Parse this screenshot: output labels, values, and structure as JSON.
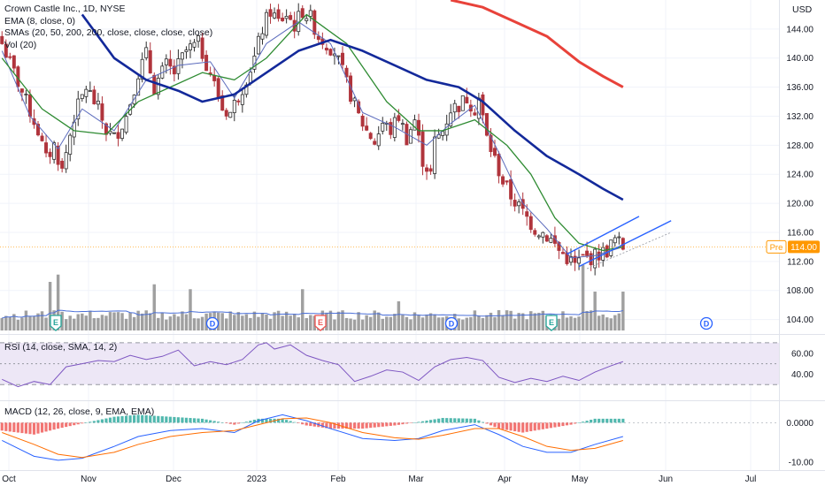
{
  "header": {
    "symbol_line": "Crown Castle Inc., 1D, NYSE",
    "ema_line": "EMA (8, close, 0)",
    "sma_line": "SMAs (20, 50, 200, 200, close, close, close, close)",
    "vol_line": "Vol (20)",
    "currency": "USD"
  },
  "price_badge": {
    "session": "Pre",
    "value": "114.00"
  },
  "panes": {
    "rsi_label": "RSI (14, close, SMA, 14, 2)",
    "macd_label": "MACD (12, 26, close, 9, EMA, EMA)"
  },
  "colors": {
    "up": "#2f2f2f",
    "down": "#b0343c",
    "ema8": "#5b6bbd",
    "sma20": "#2e8b32",
    "sma50": "#13299a",
    "sma200": "#e8423a",
    "volume": "#8f8f8f",
    "vol_ma": "#4a6fd8",
    "rsi_line": "#7e57c2",
    "rsi_band": "#ede7f6",
    "macd_line": "#2962ff",
    "signal_line": "#ff6d00",
    "hist_pos": "#26a69a",
    "hist_neg": "#ef5350",
    "channel": "#2962ff",
    "badge": "#ff9800",
    "event_earnings": "#26a69a",
    "event_dividend": "#2962ff",
    "event_split": "#ef5350"
  },
  "chart_data": [
    {
      "type": "candlestick",
      "title": "Crown Castle Inc., 1D, NYSE",
      "currency": "USD",
      "x_ticks": [
        "Oct",
        "Nov",
        "Dec",
        "2023",
        "Feb",
        "Mar",
        "Apr",
        "May",
        "Jun",
        "Jul"
      ],
      "ylim": [
        102,
        148
      ],
      "y_ticks": [
        104,
        108,
        112,
        116,
        120,
        124,
        128,
        132,
        136,
        140,
        144
      ],
      "y_tick_labels": [
        "104.00",
        "108.00",
        "112.00",
        "116.00",
        "120.00",
        "124.00",
        "128.00",
        "132.00",
        "136.00",
        "140.00",
        "144.00"
      ],
      "price_path": [
        [
          0,
          142.0
        ],
        [
          3,
          138.0
        ],
        [
          6,
          134.0
        ],
        [
          9,
          130.0
        ],
        [
          11,
          126.0
        ],
        [
          13,
          128.0
        ],
        [
          15,
          124.5
        ],
        [
          18,
          132.0
        ],
        [
          21,
          136.0
        ],
        [
          24,
          133.0
        ],
        [
          26,
          130.0
        ],
        [
          28,
          129.0
        ],
        [
          31,
          132.0
        ],
        [
          34,
          138.0
        ],
        [
          36,
          140.5
        ],
        [
          38,
          136.0
        ],
        [
          41,
          139.0
        ],
        [
          43,
          138.0
        ],
        [
          46,
          141.0
        ],
        [
          49,
          142.0
        ],
        [
          52,
          138.0
        ],
        [
          55,
          133.0
        ],
        [
          57,
          132.5
        ],
        [
          60,
          136.0
        ],
        [
          63,
          140.0
        ],
        [
          65,
          144.0
        ],
        [
          67,
          146.5
        ],
        [
          69,
          145.0
        ],
        [
          71,
          146.0
        ],
        [
          73,
          144.5
        ],
        [
          75,
          146.5
        ],
        [
          77,
          145.5
        ],
        [
          79,
          143.0
        ],
        [
          81,
          142.0
        ],
        [
          83,
          141.0
        ],
        [
          85,
          138.0
        ],
        [
          87,
          135.0
        ],
        [
          89,
          132.0
        ],
        [
          91,
          130.0
        ],
        [
          93,
          128.5
        ],
        [
          95,
          131.0
        ],
        [
          97,
          130.0
        ],
        [
          99,
          132.0
        ],
        [
          101,
          129.0
        ],
        [
          103,
          131.5
        ],
        [
          105,
          126.0
        ],
        [
          107,
          124.0
        ],
        [
          108,
          128.5
        ],
        [
          110,
          130.0
        ],
        [
          112,
          133.0
        ],
        [
          114,
          133.5
        ],
        [
          116,
          134.5
        ],
        [
          118,
          133.0
        ],
        [
          119,
          134.5
        ],
        [
          121,
          129.0
        ],
        [
          123,
          126.0
        ],
        [
          125,
          123.0
        ],
        [
          127,
          121.0
        ],
        [
          129,
          119.5
        ],
        [
          131,
          118.0
        ],
        [
          133,
          116.5
        ],
        [
          135,
          116.0
        ],
        [
          137,
          115.0
        ],
        [
          139,
          113.5
        ],
        [
          141,
          112.5
        ],
        [
          143,
          111.5
        ],
        [
          145,
          112.5
        ],
        [
          147,
          112.5
        ],
        [
          149,
          113.0
        ],
        [
          151,
          113.5
        ],
        [
          153,
          115.0
        ],
        [
          155,
          114.0
        ]
      ],
      "overlays": [
        {
          "name": "EMA (8, close, 0)",
          "points": [
            [
              0,
              141.0
            ],
            [
              7,
              132.0
            ],
            [
              14,
              127.5
            ],
            [
              20,
              133.0
            ],
            [
              28,
              130.0
            ],
            [
              36,
              137.0
            ],
            [
              44,
              139.0
            ],
            [
              52,
              139.5
            ],
            [
              58,
              134.5
            ],
            [
              66,
              142.0
            ],
            [
              74,
              145.0
            ],
            [
              82,
              142.0
            ],
            [
              90,
              132.5
            ],
            [
              98,
              130.5
            ],
            [
              106,
              128.0
            ],
            [
              112,
              131.0
            ],
            [
              118,
              133.5
            ],
            [
              124,
              127.0
            ],
            [
              130,
              120.0
            ],
            [
              136,
              116.5
            ],
            [
              142,
              112.5
            ],
            [
              148,
              112.8
            ],
            [
              155,
              114.0
            ]
          ]
        },
        {
          "name": "SMA 20",
          "points": [
            [
              0,
              140.0
            ],
            [
              10,
              133.0
            ],
            [
              18,
              130.0
            ],
            [
              26,
              129.5
            ],
            [
              34,
              134.0
            ],
            [
              42,
              136.0
            ],
            [
              50,
              138.0
            ],
            [
              58,
              137.0
            ],
            [
              66,
              140.0
            ],
            [
              76,
              146.0
            ],
            [
              86,
              142.0
            ],
            [
              96,
              134.0
            ],
            [
              104,
              130.0
            ],
            [
              110,
              130.0
            ],
            [
              118,
              131.5
            ],
            [
              126,
              128.0
            ],
            [
              132,
              124.0
            ],
            [
              138,
              118.0
            ],
            [
              144,
              114.5
            ],
            [
              150,
              113.5
            ],
            [
              155,
              114.0
            ]
          ]
        },
        {
          "name": "SMA 50",
          "points": [
            [
              20,
              146.0
            ],
            [
              28,
              140.0
            ],
            [
              36,
              137.0
            ],
            [
              44,
              135.5
            ],
            [
              50,
              134.0
            ],
            [
              58,
              135.0
            ],
            [
              66,
              138.0
            ],
            [
              74,
              141.0
            ],
            [
              82,
              142.5
            ],
            [
              90,
              141.0
            ],
            [
              98,
              139.0
            ],
            [
              106,
              137.0
            ],
            [
              114,
              136.0
            ],
            [
              120,
              134.0
            ],
            [
              128,
              130.0
            ],
            [
              136,
              126.5
            ],
            [
              144,
              124.0
            ],
            [
              150,
              122.0
            ],
            [
              155,
              120.5
            ]
          ]
        },
        {
          "name": "SMA 200",
          "points": [
            [
              112,
              148.0
            ],
            [
              120,
              147.0
            ],
            [
              128,
              145.0
            ],
            [
              136,
              143.0
            ],
            [
              144,
              139.5
            ],
            [
              150,
              137.5
            ],
            [
              155,
              136.0
            ]
          ]
        }
      ]
    },
    {
      "type": "bar",
      "name": "Vol (20)",
      "x_span": [
        0,
        155
      ],
      "spikes": [
        [
          12,
          1.0
        ],
        [
          14,
          1.15
        ],
        [
          38,
          0.95
        ],
        [
          47,
          0.85
        ],
        [
          75,
          0.85
        ],
        [
          99,
          0.6
        ],
        [
          145,
          1.35
        ],
        [
          148,
          0.8
        ],
        [
          155,
          0.8
        ]
      ]
    },
    {
      "type": "line",
      "name": "RSI (14, close, SMA, 14, 2)",
      "ylim": [
        15,
        75
      ],
      "y_ticks": [
        40,
        60
      ],
      "y_tick_labels": [
        "40.00",
        "60.00"
      ],
      "bands": [
        30,
        50,
        70
      ],
      "points": [
        [
          0,
          35
        ],
        [
          4,
          28
        ],
        [
          8,
          33
        ],
        [
          12,
          30
        ],
        [
          16,
          47
        ],
        [
          20,
          50
        ],
        [
          24,
          53
        ],
        [
          28,
          52
        ],
        [
          32,
          58
        ],
        [
          36,
          54
        ],
        [
          40,
          57
        ],
        [
          44,
          63
        ],
        [
          48,
          48
        ],
        [
          52,
          52
        ],
        [
          56,
          49
        ],
        [
          60,
          54
        ],
        [
          64,
          68
        ],
        [
          66,
          70
        ],
        [
          68,
          64
        ],
        [
          72,
          68
        ],
        [
          76,
          58
        ],
        [
          80,
          53
        ],
        [
          84,
          49
        ],
        [
          88,
          33
        ],
        [
          92,
          38
        ],
        [
          96,
          44
        ],
        [
          100,
          42
        ],
        [
          104,
          34
        ],
        [
          108,
          47
        ],
        [
          112,
          54
        ],
        [
          116,
          56
        ],
        [
          120,
          53
        ],
        [
          124,
          37
        ],
        [
          128,
          32
        ],
        [
          132,
          36
        ],
        [
          136,
          33
        ],
        [
          140,
          38
        ],
        [
          144,
          34
        ],
        [
          148,
          42
        ],
        [
          152,
          48
        ],
        [
          155,
          52
        ]
      ]
    },
    {
      "type": "line",
      "name": "MACD (12, 26, close, 9, EMA, EMA)",
      "ylim": [
        -12,
        5
      ],
      "y_ticks": [
        0,
        -10
      ],
      "y_tick_labels": [
        "0.0000",
        "-10.00"
      ],
      "series": [
        {
          "name": "MACD",
          "points": [
            [
              0,
              -4.5
            ],
            [
              8,
              -8.5
            ],
            [
              14,
              -9.5
            ],
            [
              20,
              -9.0
            ],
            [
              28,
              -6.0
            ],
            [
              34,
              -3.5
            ],
            [
              42,
              -2.0
            ],
            [
              50,
              -1.5
            ],
            [
              58,
              -2.5
            ],
            [
              64,
              0.5
            ],
            [
              70,
              2.0
            ],
            [
              76,
              0.5
            ],
            [
              82,
              -1.5
            ],
            [
              90,
              -4.0
            ],
            [
              98,
              -4.5
            ],
            [
              104,
              -4.0
            ],
            [
              110,
              -2.0
            ],
            [
              118,
              -0.5
            ],
            [
              124,
              -3.0
            ],
            [
              130,
              -6.0
            ],
            [
              136,
              -7.5
            ],
            [
              142,
              -7.5
            ],
            [
              148,
              -5.5
            ],
            [
              155,
              -3.5
            ]
          ]
        },
        {
          "name": "Signal",
          "points": [
            [
              0,
              -2.5
            ],
            [
              8,
              -5.5
            ],
            [
              14,
              -8.0
            ],
            [
              20,
              -8.8
            ],
            [
              28,
              -7.5
            ],
            [
              34,
              -5.5
            ],
            [
              42,
              -3.5
            ],
            [
              50,
              -2.5
            ],
            [
              58,
              -2.0
            ],
            [
              64,
              -0.5
            ],
            [
              70,
              1.0
            ],
            [
              76,
              1.2
            ],
            [
              82,
              0.0
            ],
            [
              90,
              -2.5
            ],
            [
              98,
              -3.8
            ],
            [
              104,
              -4.2
            ],
            [
              110,
              -3.2
            ],
            [
              118,
              -1.5
            ],
            [
              124,
              -1.5
            ],
            [
              130,
              -3.5
            ],
            [
              136,
              -6.0
            ],
            [
              142,
              -7.0
            ],
            [
              148,
              -6.5
            ],
            [
              155,
              -4.5
            ]
          ]
        }
      ]
    }
  ]
}
